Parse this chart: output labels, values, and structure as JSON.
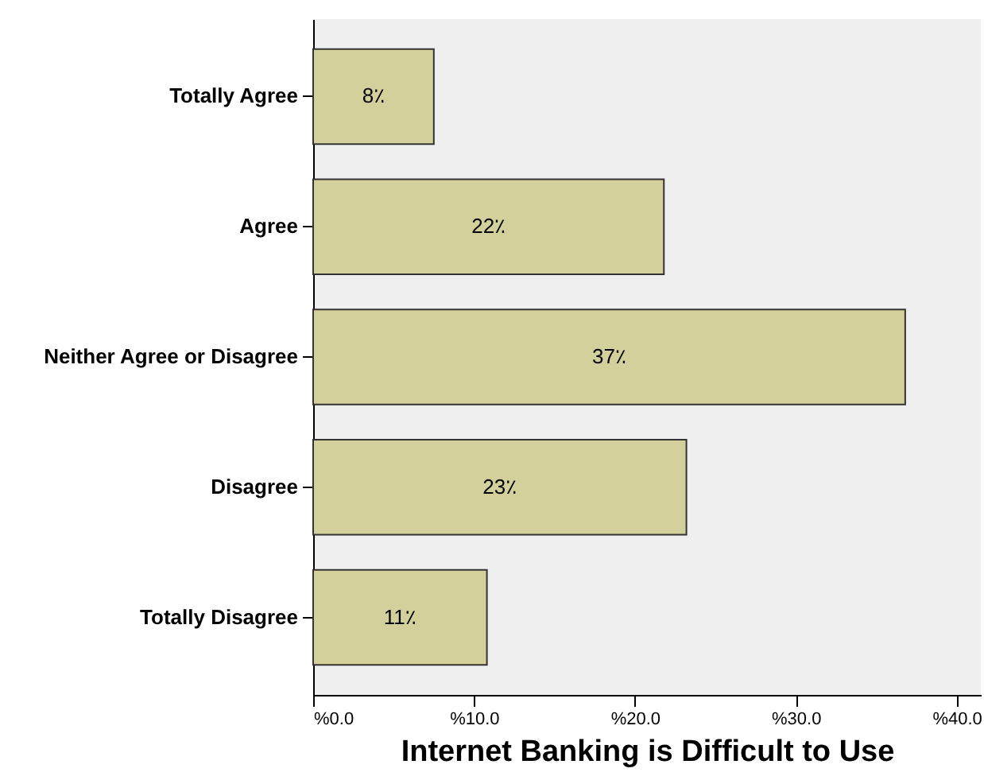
{
  "chart_data": {
    "type": "bar",
    "orientation": "horizontal",
    "xlabel": "Internet Banking is Difficult to Use",
    "categories": [
      "Totally Agree",
      "Agree",
      "Neither Agree or Disagree",
      "Disagree",
      "Totally Disagree"
    ],
    "values": [
      7.5,
      21.8,
      36.8,
      23.2,
      10.8
    ],
    "value_labels": [
      "8٪",
      "22٪",
      "37٪",
      "23٪",
      "11٪"
    ],
    "color": "#d4d09b",
    "xlim": [
      0,
      41.5
    ],
    "xticks": [
      {
        "value": 0,
        "label": "%0.0"
      },
      {
        "value": 10,
        "label": "%10.0"
      },
      {
        "value": 20,
        "label": "%20.0"
      },
      {
        "value": 30,
        "label": "%30.0"
      },
      {
        "value": 40,
        "label": "%40.0"
      }
    ],
    "grid": false
  }
}
